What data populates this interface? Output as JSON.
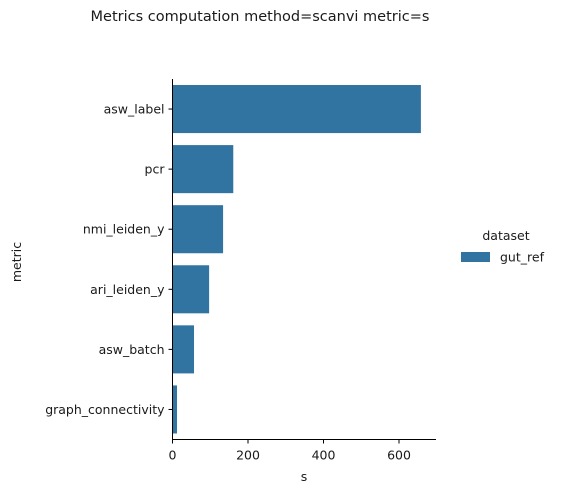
{
  "chart_data": {
    "type": "bar",
    "orientation": "horizontal",
    "title": "Metrics computation method=scanvi metric=s",
    "xlabel": "s",
    "ylabel": "metric",
    "categories": [
      "asw_label",
      "pcr",
      "nmi_leiden_y",
      "ari_leiden_y",
      "asw_batch",
      "graph_connectivity"
    ],
    "series": [
      {
        "name": "gut_ref",
        "values": [
          658,
          161,
          134,
          97,
          57,
          12
        ]
      }
    ],
    "xlim": [
      0,
      700
    ],
    "xticks": [
      0,
      200,
      400,
      600
    ],
    "grid": false,
    "legend": {
      "title": "dataset",
      "placement": "right"
    },
    "colors": {
      "gut_ref": "#3274a1",
      "axis": "#000000"
    }
  }
}
